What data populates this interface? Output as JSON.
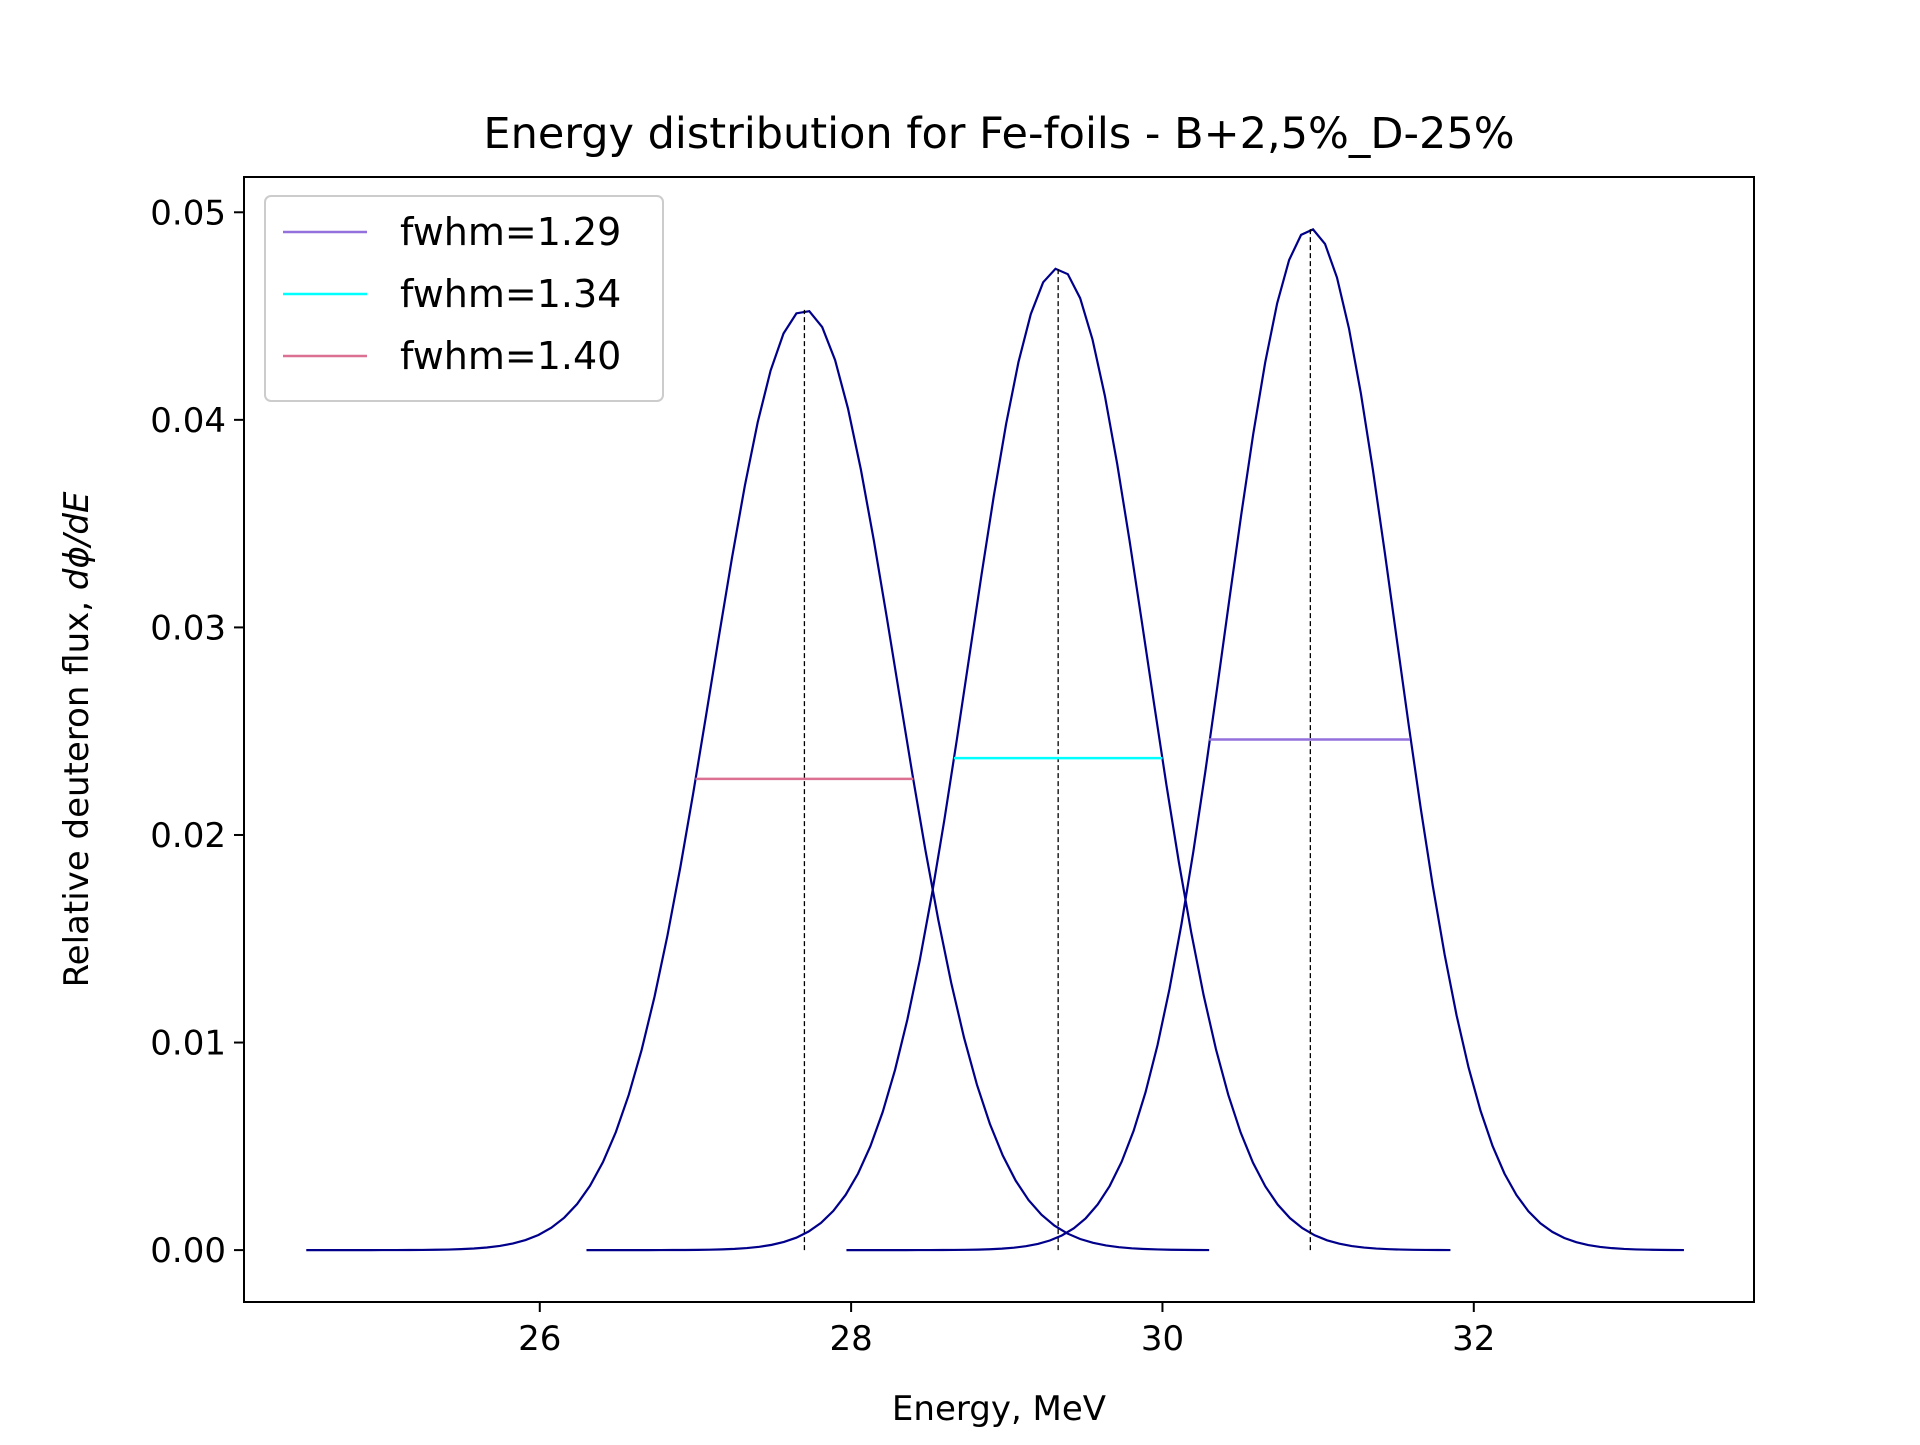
{
  "chart_data": {
    "type": "line",
    "title": "Energy distribution for Fe-foils - B+2,5%_D-25%",
    "xlabel": "Energy, MeV",
    "ylabel_prefix": "Relative deuteron flux, ",
    "ylabel_math": "dϕ/dE",
    "xlim": [
      24.1,
      33.8
    ],
    "ylim": [
      -0.0025,
      0.0517
    ],
    "x_ticks": [
      26,
      28,
      30,
      32
    ],
    "x_tick_labels": [
      "26",
      "28",
      "30",
      "32"
    ],
    "y_ticks": [
      0.0,
      0.01,
      0.02,
      0.03,
      0.04,
      0.05
    ],
    "y_tick_labels": [
      "0.00",
      "0.01",
      "0.02",
      "0.03",
      "0.04",
      "0.05"
    ],
    "grid": false,
    "legend_position": "top-left",
    "curve_color": "#00008b",
    "peak_line_color": "#000000",
    "curves": [
      {
        "x_start": 24.5,
        "x_end": 30.3,
        "peak_x": 27.7,
        "peak_y": 0.0453,
        "fwhm": 1.4
      },
      {
        "x_start": 26.3,
        "x_end": 31.85,
        "peak_x": 29.33,
        "peak_y": 0.0473,
        "fwhm": 1.34
      },
      {
        "x_start": 27.97,
        "x_end": 33.35,
        "peak_x": 30.95,
        "peak_y": 0.0492,
        "fwhm": 1.29
      }
    ],
    "series": [
      {
        "name": "fwhm=1.29",
        "color": "#9370db",
        "x": [
          30.3,
          31.59
        ],
        "y": [
          0.0246,
          0.0246
        ]
      },
      {
        "name": "fwhm=1.34",
        "color": "#00ffff",
        "x": [
          28.66,
          30.0
        ],
        "y": [
          0.0237,
          0.0237
        ]
      },
      {
        "name": "fwhm=1.40",
        "color": "#db7093",
        "x": [
          27.0,
          28.4
        ],
        "y": [
          0.0227,
          0.0227
        ]
      }
    ]
  }
}
